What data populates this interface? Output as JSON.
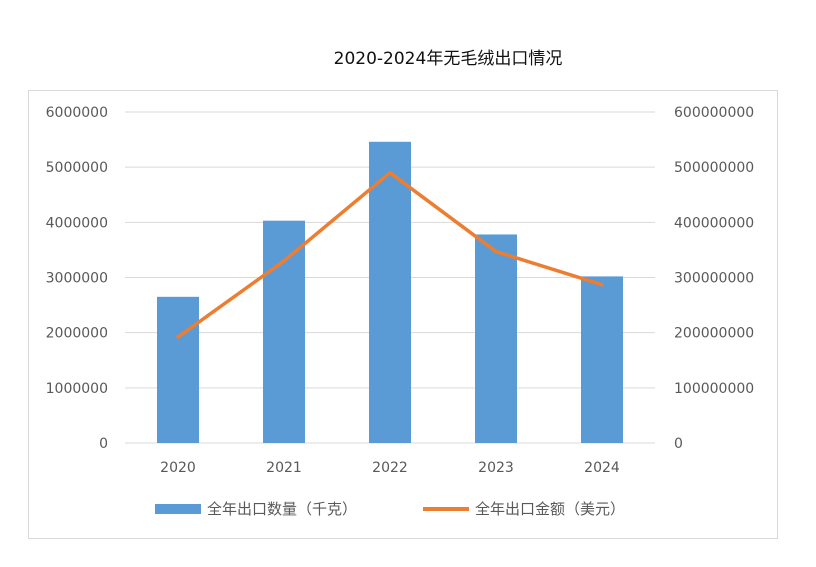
{
  "title": "2020-2024年无毛绒出口情况",
  "colors": {
    "bar": "#5b9bd5",
    "line": "#ed7d31",
    "grid": "#d9d9d9"
  },
  "chart_data": {
    "type": "bar",
    "title": "2020-2024年无毛绒出口情况",
    "categories": [
      "2020",
      "2021",
      "2022",
      "2023",
      "2024"
    ],
    "series": [
      {
        "name": "全年出口数量（千克）",
        "type": "bar",
        "axis": "left",
        "values": [
          2650000,
          4030000,
          5460000,
          3780000,
          3020000
        ]
      },
      {
        "name": "全年出口金额（美元）",
        "type": "line",
        "axis": "right",
        "values": [
          192000000,
          330000000,
          490000000,
          347000000,
          287000000
        ]
      }
    ],
    "y_left": {
      "lim": [
        0,
        6000000
      ],
      "ticks": [
        "0",
        "1000000",
        "2000000",
        "3000000",
        "4000000",
        "5000000",
        "6000000"
      ]
    },
    "y_right": {
      "lim": [
        0,
        600000000
      ],
      "ticks": [
        "0",
        "100000000",
        "200000000",
        "300000000",
        "400000000",
        "500000000",
        "600000000"
      ]
    },
    "grid": true,
    "legend_position": "bottom"
  }
}
